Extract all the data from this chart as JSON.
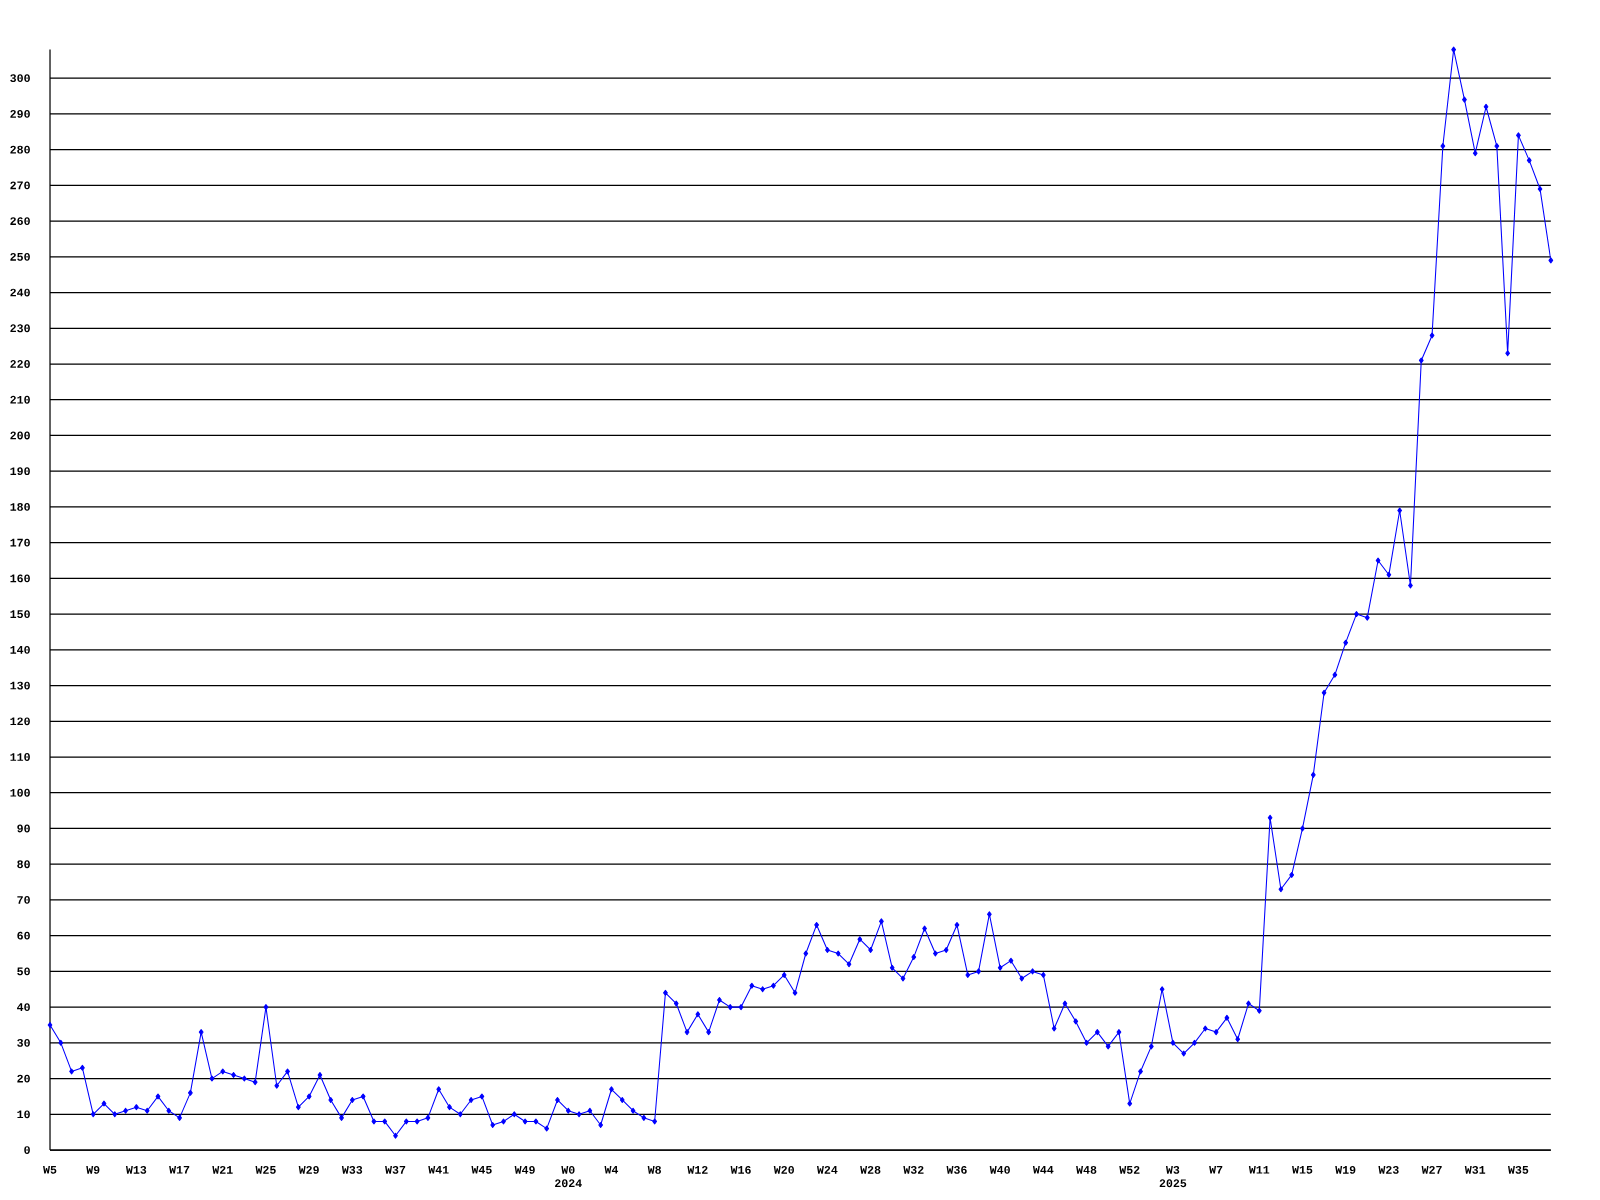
{
  "chart_data": {
    "type": "line",
    "categories": [
      "W5",
      null,
      null,
      null,
      "W9",
      null,
      null,
      null,
      "W13",
      null,
      null,
      null,
      "W17",
      null,
      null,
      null,
      "W21",
      null,
      null,
      null,
      "W25",
      null,
      null,
      null,
      "W29",
      null,
      null,
      null,
      "W33",
      null,
      null,
      null,
      "W37",
      null,
      null,
      null,
      "W41",
      null,
      null,
      null,
      "W45",
      null,
      null,
      null,
      "W49",
      null,
      null,
      null,
      "W0 2024",
      null,
      null,
      null,
      "W4",
      null,
      null,
      null,
      "W8",
      null,
      null,
      null,
      "W12",
      null,
      null,
      null,
      "W16",
      null,
      null,
      null,
      "W20",
      null,
      null,
      null,
      "W24",
      null,
      null,
      null,
      "W28",
      null,
      null,
      null,
      "W32",
      null,
      null,
      null,
      "W36",
      null,
      null,
      null,
      "W40",
      null,
      null,
      null,
      "W44",
      null,
      null,
      null,
      "W48",
      null,
      null,
      null,
      "W52",
      null,
      null,
      null,
      "W3 2025",
      null,
      null,
      null,
      "W7",
      null,
      null,
      null,
      "W11",
      null,
      null,
      null,
      "W15",
      null,
      null,
      null,
      "W19",
      null,
      null,
      null,
      "W23",
      null,
      null,
      null,
      "W27",
      null,
      null,
      null,
      "W31",
      null,
      null,
      null,
      "W35",
      null,
      null,
      null
    ],
    "values": [
      35,
      30,
      22,
      23,
      10,
      13,
      10,
      11,
      12,
      11,
      15,
      11,
      9,
      16,
      33,
      20,
      22,
      21,
      20,
      19,
      40,
      18,
      22,
      12,
      15,
      21,
      14,
      9,
      14,
      15,
      8,
      8,
      4,
      8,
      8,
      9,
      17,
      12,
      10,
      14,
      15,
      7,
      8,
      10,
      8,
      8,
      6,
      14,
      11,
      10,
      11,
      7,
      17,
      14,
      11,
      9,
      8,
      44,
      41,
      33,
      38,
      33,
      42,
      40,
      40,
      46,
      45,
      46,
      49,
      44,
      55,
      63,
      56,
      55,
      52,
      59,
      56,
      64,
      51,
      48,
      54,
      62,
      55,
      56,
      63,
      49,
      50,
      66,
      51,
      53,
      48,
      50,
      49,
      34,
      41,
      36,
      30,
      33,
      29,
      33,
      13,
      22,
      29,
      45,
      30,
      27,
      30,
      34,
      33,
      37,
      31,
      41,
      39,
      93,
      73,
      77,
      90,
      105,
      128,
      133,
      142,
      150,
      149,
      165,
      161,
      179,
      158,
      221,
      228,
      281,
      308,
      294,
      279,
      292,
      281,
      223,
      284,
      277,
      269,
      249
    ],
    "color": "#0000ff",
    "marker": "diamond",
    "grid": "y",
    "ylim": [
      0,
      308
    ],
    "yticks": [
      0,
      10,
      20,
      30,
      40,
      50,
      60,
      70,
      80,
      90,
      100,
      110,
      120,
      130,
      140,
      150,
      160,
      170,
      180,
      190,
      200,
      210,
      220,
      230,
      240,
      250,
      260,
      270,
      280,
      290,
      300
    ]
  }
}
